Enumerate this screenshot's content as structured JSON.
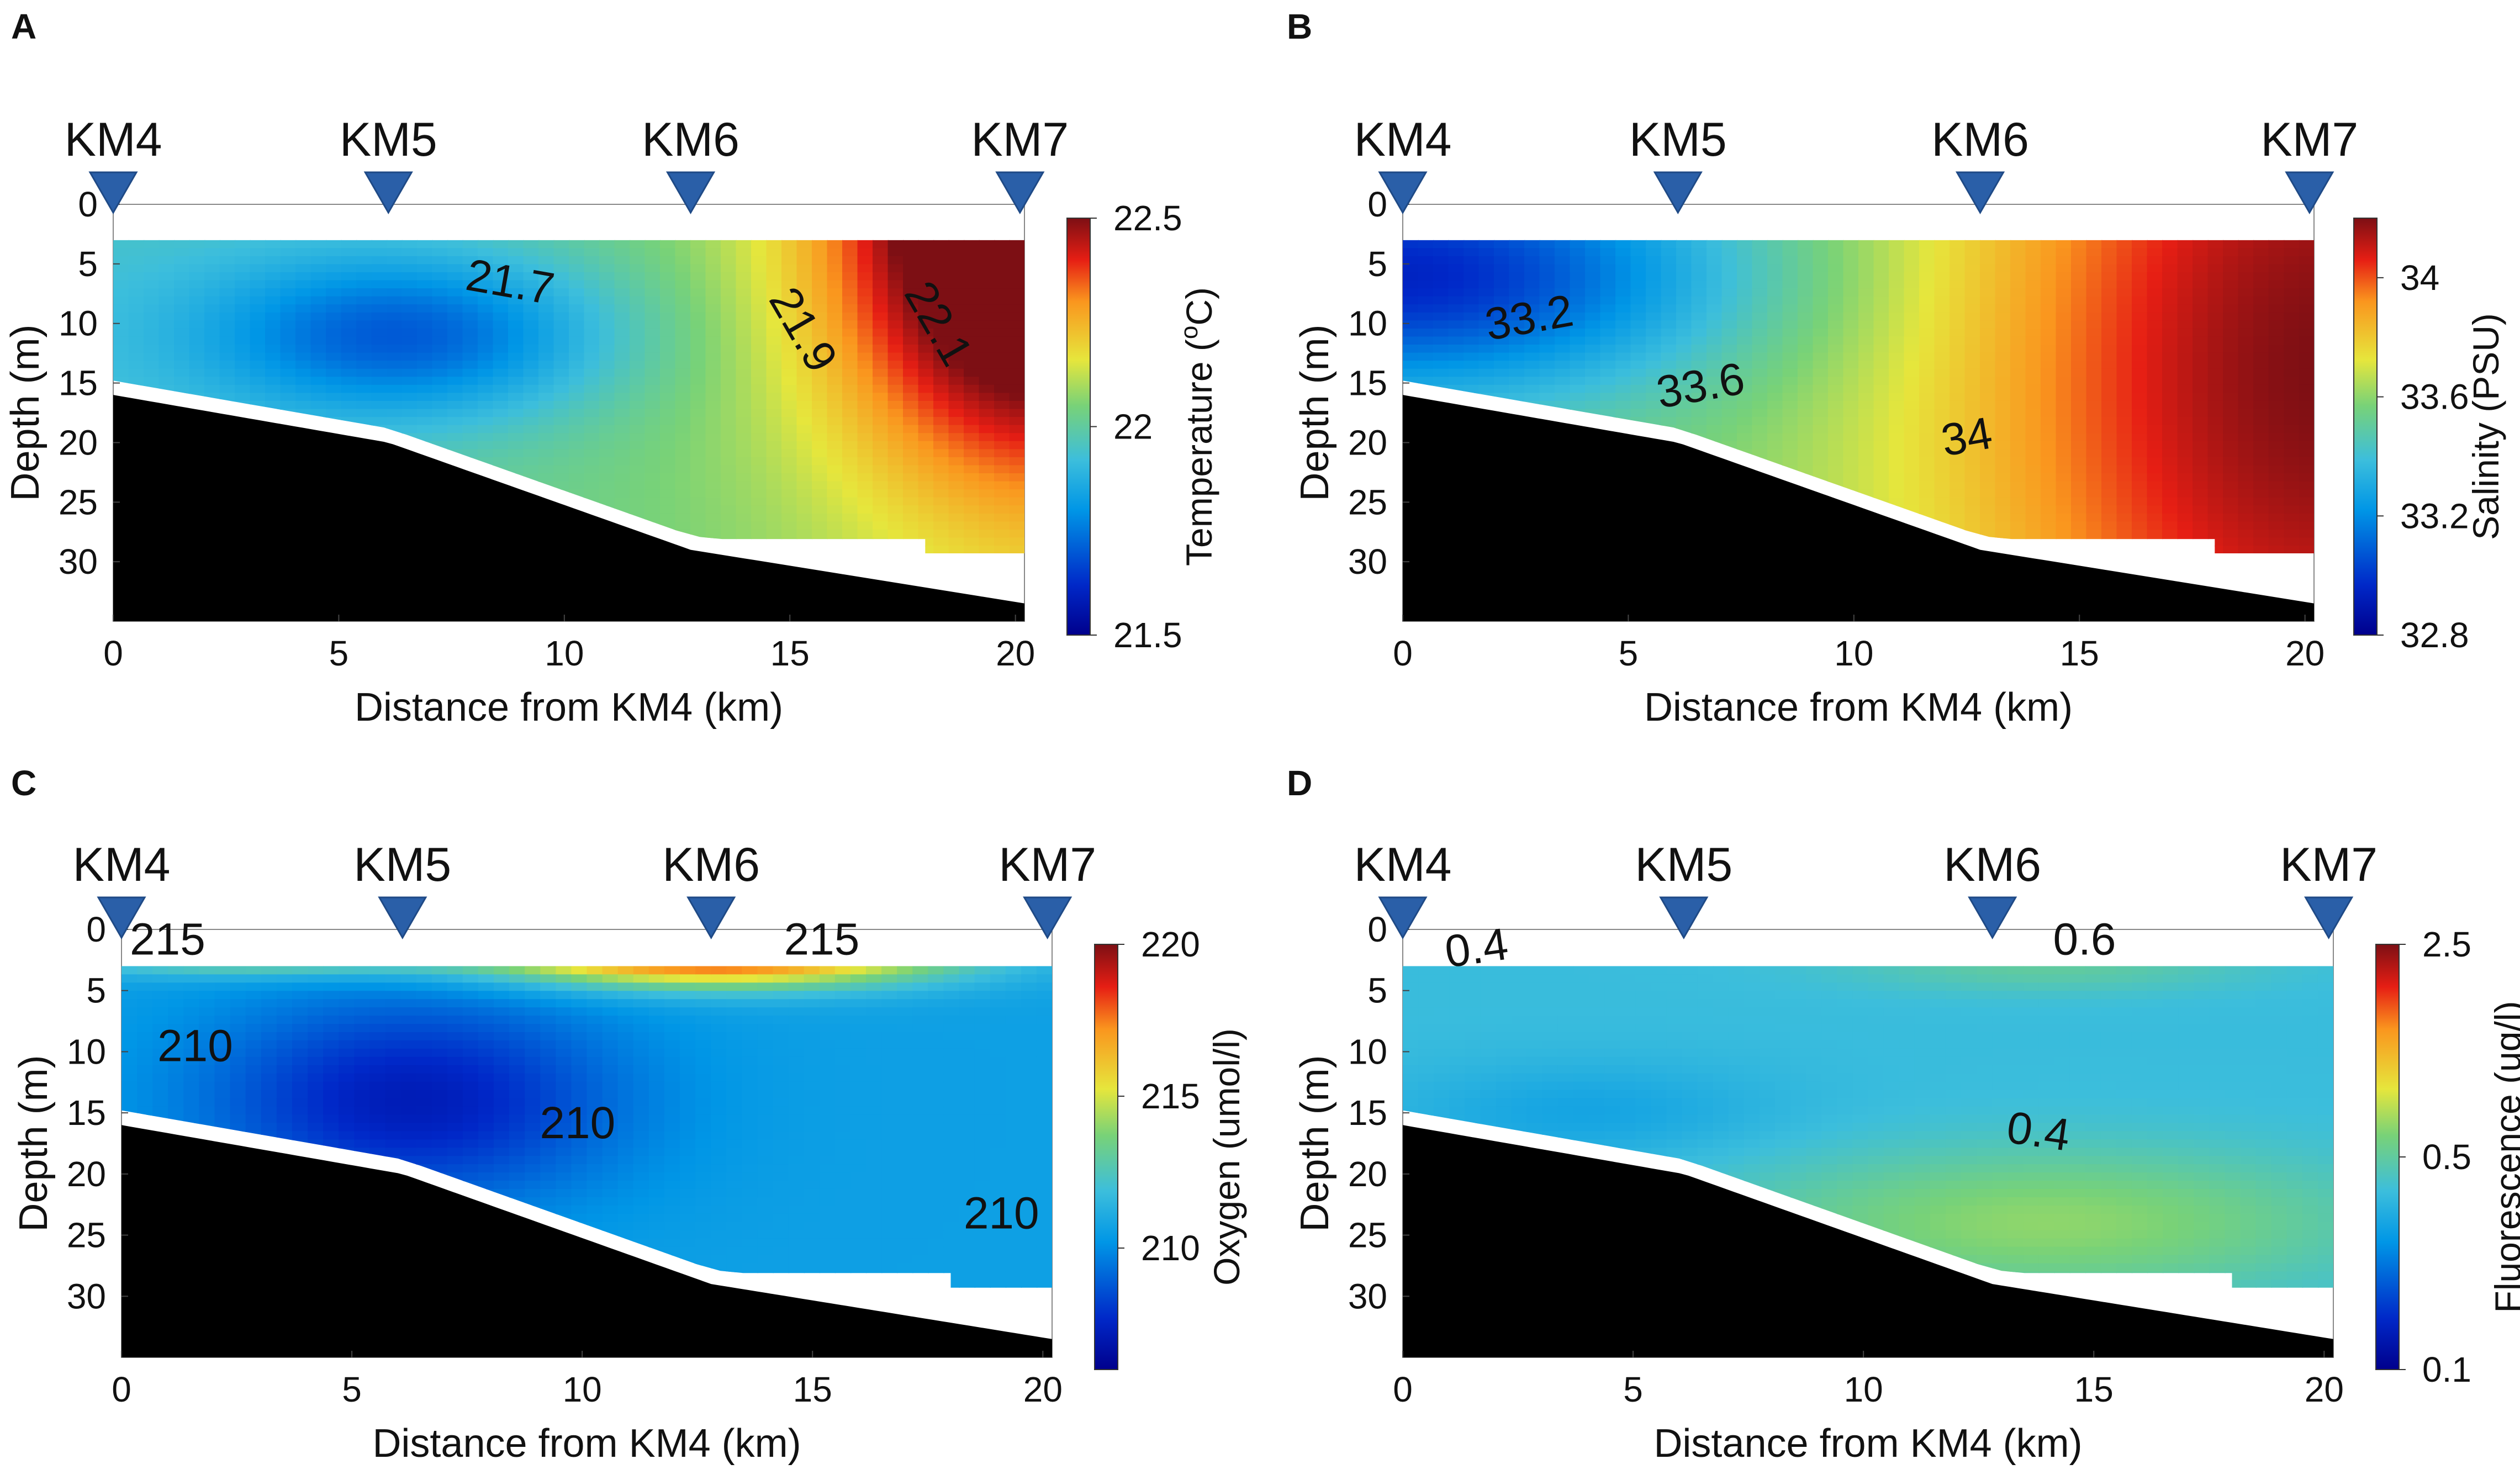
{
  "chart_data": [
    {
      "type": "heatmap",
      "panel_label": "A",
      "variable": "temperature",
      "stations": [
        "KM4",
        "KM5",
        "KM6",
        "KM7"
      ],
      "station_distance_km": [
        0,
        6.1,
        12.8,
        20.1
      ],
      "xlabel": "Distance from KM4 (km)",
      "ylabel": "Depth (m)",
      "xlim": [
        0,
        20.2
      ],
      "ylim": [
        0,
        35
      ],
      "xticks": [
        "0",
        "5",
        "10",
        "15",
        "20"
      ],
      "yticks": [
        "0",
        "5",
        "10",
        "15",
        "20",
        "25",
        "30"
      ],
      "colorbar": {
        "label": "Temperature (°C)",
        "label_prefix": "Temperature (",
        "label_sup": "o",
        "label_suffix": "C)",
        "min": 21.5,
        "max": 22.5,
        "ticks": [
          "21.5",
          "22",
          "22.5"
        ]
      },
      "contour_labels": [
        {
          "text": "21.7",
          "x": 8.8,
          "y": 6.5,
          "angle": 10
        },
        {
          "text": "21.9",
          "x": 15.3,
          "y": 10.5,
          "angle": 60
        },
        {
          "text": "22.1",
          "x": 18.3,
          "y": 10,
          "angle": 60
        }
      ],
      "field": {
        "base": 21.95,
        "blobs": [
          {
            "x": 6.5,
            "y": 11,
            "sx": 3.2,
            "sy": 5,
            "a": -0.3
          },
          {
            "x": 20.5,
            "y": 2,
            "sx": 3.2,
            "sy": 14,
            "a": 0.65
          },
          {
            "x": 20.5,
            "y": 2,
            "sx": 1.5,
            "sy": 2.5,
            "a": 0.2
          }
        ],
        "grad": {
          "dx": 0.008,
          "dy": 0
        }
      }
    },
    {
      "type": "heatmap",
      "panel_label": "B",
      "variable": "salinity",
      "stations": [
        "KM4",
        "KM5",
        "KM6",
        "KM7"
      ],
      "station_distance_km": [
        0,
        6.1,
        12.8,
        20.1
      ],
      "xlabel": "Distance from KM4 (km)",
      "ylabel": "Depth (m)",
      "xlim": [
        0,
        20.2
      ],
      "ylim": [
        0,
        35
      ],
      "xticks": [
        "0",
        "5",
        "10",
        "15",
        "20"
      ],
      "yticks": [
        "0",
        "5",
        "10",
        "15",
        "20",
        "25",
        "30"
      ],
      "colorbar": {
        "label": "Salinity (PSU)",
        "min": 32.8,
        "max": 34.2,
        "ticks": [
          "32.8",
          "33.2",
          "33.6",
          "34"
        ]
      },
      "contour_labels": [
        {
          "text": "33.2",
          "x": 2.8,
          "y": 9.5,
          "angle": -10
        },
        {
          "text": "33.6",
          "x": 6.6,
          "y": 15.2,
          "angle": -10
        },
        {
          "text": "34",
          "x": 12.5,
          "y": 19.5,
          "angle": -10
        }
      ],
      "field": {
        "base": 33.55,
        "blobs": [
          {
            "x": 0,
            "y": 6,
            "sx": 5,
            "sy": 7,
            "a": -0.6
          },
          {
            "x": 20.5,
            "y": 14,
            "sx": 6,
            "sy": 30,
            "a": 0.65
          }
        ],
        "grad": {
          "dx": 0.0,
          "dy": 0
        }
      }
    },
    {
      "type": "heatmap",
      "panel_label": "C",
      "variable": "oxygen",
      "stations": [
        "KM4",
        "KM5",
        "KM6",
        "KM7"
      ],
      "station_distance_km": [
        0,
        6.1,
        12.8,
        20.1
      ],
      "xlabel": "Distance from KM4 (km)",
      "ylabel": "Depth (m)",
      "xlim": [
        0,
        20.2
      ],
      "ylim": [
        0,
        35
      ],
      "xticks": [
        "0",
        "5",
        "10",
        "15",
        "20"
      ],
      "yticks": [
        "0",
        "5",
        "10",
        "15",
        "20",
        "25",
        "30"
      ],
      "colorbar": {
        "label": "Oxygen (umol/l)",
        "min": 206,
        "max": 220,
        "ticks": [
          "210",
          "215",
          "220"
        ]
      },
      "contour_labels": [
        {
          "text": "215",
          "x": 1.0,
          "y": 0.8,
          "angle": 0
        },
        {
          "text": "215",
          "x": 15.2,
          "y": 0.8,
          "angle": 0
        },
        {
          "text": "210",
          "x": 1.6,
          "y": 9.5,
          "angle": 0
        },
        {
          "text": "210",
          "x": 9.9,
          "y": 15.8,
          "angle": 0
        },
        {
          "text": "210",
          "x": 19.1,
          "y": 23.2,
          "angle": 0
        }
      ],
      "field": {
        "base": 210.6,
        "blobs": [
          {
            "x": 6.3,
            "y": 14,
            "sx": 3.2,
            "sy": 6,
            "a": -3.4
          },
          {
            "x": 12.8,
            "y": 2,
            "sx": 3.5,
            "sy": 1.8,
            "a": 9
          },
          {
            "x": 3,
            "y": 2,
            "sx": 3,
            "sy": 1.2,
            "a": 4
          }
        ],
        "grad": {
          "dx": 0.0,
          "dy": 0
        }
      }
    },
    {
      "type": "heatmap",
      "panel_label": "D",
      "variable": "fluorescence",
      "stations": [
        "KM4",
        "KM5",
        "KM6",
        "KM7"
      ],
      "station_distance_km": [
        0,
        6.1,
        12.8,
        20.1
      ],
      "xlabel": "Distance from KM4 (km)",
      "ylabel": "Depth (m)",
      "xlim": [
        0,
        20.2
      ],
      "ylim": [
        0,
        35
      ],
      "xticks": [
        "0",
        "5",
        "10",
        "15",
        "20"
      ],
      "yticks": [
        "0",
        "5",
        "10",
        "15",
        "20",
        "25",
        "30"
      ],
      "colorbar": {
        "label": "Fluorescence (ug/l)",
        "min": 0.1,
        "max": 2.5,
        "log": true,
        "ticks": [
          "0.1",
          "0.5",
          "2.5"
        ]
      },
      "contour_labels": [
        {
          "text": "0.4",
          "x": 1.6,
          "y": 1.5,
          "angle": -8
        },
        {
          "text": "0.6",
          "x": 14.8,
          "y": 0.8,
          "angle": 0
        },
        {
          "text": "0.4",
          "x": 13.8,
          "y": 16.5,
          "angle": 8
        }
      ],
      "field": {
        "base": 0.38,
        "blobs": [
          {
            "x": 14,
            "y": 24,
            "sx": 4.5,
            "sy": 4,
            "a": 0.25
          },
          {
            "x": 14,
            "y": 3,
            "sx": 3,
            "sy": 1.5,
            "a": 0.12
          },
          {
            "x": 4,
            "y": 15,
            "sx": 3,
            "sy": 3,
            "a": -0.08
          }
        ],
        "grad": {
          "dx": 0.0,
          "dy": 0
        }
      }
    }
  ]
}
